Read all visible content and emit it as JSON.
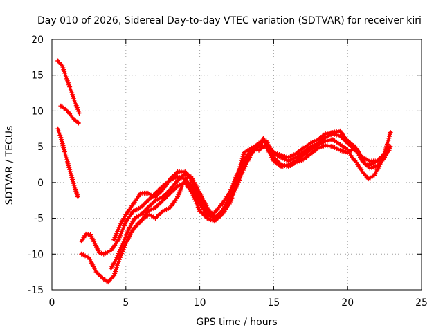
{
  "chart_data": {
    "type": "scatter",
    "title": "Day 010 of 2026, Sidereal Day-to-day VTEC variation (SDTVAR) for receiver kiri",
    "xlabel": "GPS time / hours",
    "ylabel": "SDTVAR / TECUs",
    "xlim": [
      0,
      25
    ],
    "ylim": [
      -15,
      20
    ],
    "x_ticks": [
      0,
      5,
      10,
      15,
      20,
      25
    ],
    "y_ticks": [
      -15,
      -10,
      -5,
      0,
      5,
      10,
      15,
      20
    ],
    "x_tick_labels": [
      "0",
      "5",
      "10",
      "15",
      "20",
      "25"
    ],
    "y_tick_labels": [
      "-15",
      "-10",
      "-5",
      "0",
      "5",
      "10",
      "15",
      "20"
    ],
    "grid": true,
    "legend": "none",
    "marker": "+",
    "color": "#ff0000",
    "series": [
      {
        "points": [
          [
            0.4,
            17.0
          ],
          [
            0.7,
            16.3
          ],
          [
            1.0,
            14.5
          ],
          [
            1.3,
            12.8
          ],
          [
            1.6,
            11.0
          ],
          [
            1.85,
            9.7
          ]
        ]
      },
      {
        "points": [
          [
            0.6,
            10.7
          ],
          [
            0.9,
            10.3
          ],
          [
            1.2,
            9.6
          ],
          [
            1.5,
            8.8
          ],
          [
            1.8,
            8.3
          ]
        ]
      },
      {
        "points": [
          [
            0.4,
            7.5
          ],
          [
            0.6,
            6.3
          ],
          [
            0.9,
            4.0
          ],
          [
            1.2,
            1.8
          ],
          [
            1.5,
            -0.4
          ],
          [
            1.75,
            -2.0
          ]
        ]
      },
      {
        "points": [
          [
            2.0,
            -8.2
          ],
          [
            2.3,
            -7.2
          ],
          [
            2.6,
            -7.3
          ],
          [
            2.9,
            -8.5
          ],
          [
            3.2,
            -9.8
          ],
          [
            3.5,
            -10.0
          ],
          [
            4.0,
            -9.5
          ],
          [
            4.5,
            -8.0
          ],
          [
            5.0,
            -5.5
          ],
          [
            5.5,
            -4.0
          ],
          [
            6.0,
            -3.5
          ],
          [
            6.5,
            -2.5
          ],
          [
            7.0,
            -1.5
          ],
          [
            7.5,
            -0.5
          ],
          [
            8.0,
            0.3
          ],
          [
            8.5,
            0.8
          ],
          [
            9.0,
            0.5
          ],
          [
            9.5,
            -0.8
          ],
          [
            10.0,
            -3.0
          ],
          [
            10.5,
            -4.5
          ],
          [
            11.0,
            -5.0
          ],
          [
            11.5,
            -4.0
          ],
          [
            12.0,
            -2.5
          ],
          [
            12.5,
            0.0
          ],
          [
            13.0,
            2.5
          ],
          [
            13.5,
            4.5
          ],
          [
            14.0,
            5.0
          ],
          [
            14.3,
            6.2
          ],
          [
            14.6,
            5.0
          ],
          [
            15.0,
            3.5
          ],
          [
            15.5,
            2.5
          ],
          [
            16.0,
            2.2
          ],
          [
            16.5,
            2.8
          ],
          [
            17.0,
            3.2
          ],
          [
            17.5,
            4.0
          ],
          [
            18.0,
            4.8
          ],
          [
            18.5,
            5.2
          ],
          [
            19.0,
            5.0
          ],
          [
            19.5,
            4.5
          ],
          [
            20.0,
            4.2
          ],
          [
            20.5,
            4.8
          ],
          [
            21.0,
            3.0
          ],
          [
            21.5,
            2.0
          ],
          [
            22.0,
            2.3
          ],
          [
            22.5,
            3.5
          ],
          [
            22.8,
            4.5
          ]
        ]
      },
      {
        "points": [
          [
            2.0,
            -10.0
          ],
          [
            2.5,
            -10.5
          ],
          [
            3.0,
            -12.5
          ],
          [
            3.5,
            -13.5
          ],
          [
            3.8,
            -13.9
          ],
          [
            4.2,
            -13.0
          ],
          [
            4.6,
            -10.5
          ],
          [
            5.0,
            -8.5
          ],
          [
            5.5,
            -6.5
          ],
          [
            6.0,
            -5.5
          ],
          [
            6.5,
            -4.0
          ],
          [
            7.0,
            -3.5
          ],
          [
            7.5,
            -2.5
          ],
          [
            8.0,
            -1.5
          ],
          [
            8.5,
            -0.5
          ],
          [
            9.0,
            0.0
          ],
          [
            9.5,
            -1.5
          ],
          [
            10.0,
            -4.0
          ],
          [
            10.5,
            -5.0
          ],
          [
            11.0,
            -5.4
          ],
          [
            11.5,
            -4.5
          ],
          [
            12.0,
            -3.0
          ],
          [
            12.5,
            -0.5
          ],
          [
            13.0,
            2.0
          ],
          [
            13.5,
            4.0
          ],
          [
            14.0,
            5.3
          ],
          [
            14.5,
            5.0
          ],
          [
            15.0,
            3.0
          ],
          [
            15.5,
            2.2
          ],
          [
            16.0,
            2.5
          ],
          [
            16.5,
            3.0
          ],
          [
            17.0,
            3.8
          ],
          [
            17.5,
            4.6
          ],
          [
            18.0,
            5.2
          ],
          [
            18.5,
            5.8
          ],
          [
            19.0,
            6.0
          ],
          [
            19.5,
            5.3
          ],
          [
            20.0,
            4.6
          ],
          [
            20.3,
            3.5
          ],
          [
            20.6,
            2.8
          ],
          [
            21.0,
            1.5
          ],
          [
            21.4,
            0.5
          ],
          [
            21.8,
            1.0
          ],
          [
            22.2,
            2.5
          ],
          [
            22.6,
            4.0
          ],
          [
            22.9,
            5.0
          ]
        ]
      },
      {
        "points": [
          [
            4.0,
            -12.0
          ],
          [
            4.4,
            -10.5
          ],
          [
            4.8,
            -8.5
          ],
          [
            5.2,
            -6.5
          ],
          [
            5.6,
            -5.0
          ],
          [
            6.0,
            -4.5
          ],
          [
            6.5,
            -3.5
          ],
          [
            7.0,
            -2.5
          ],
          [
            7.5,
            -2.0
          ],
          [
            8.0,
            -1.0
          ],
          [
            8.5,
            0.3
          ],
          [
            9.0,
            1.2
          ],
          [
            9.4,
            0.8
          ],
          [
            9.8,
            -1.5
          ],
          [
            10.2,
            -3.5
          ],
          [
            10.6,
            -4.5
          ],
          [
            11.0,
            -4.2
          ],
          [
            11.5,
            -3.0
          ],
          [
            12.0,
            -1.5
          ],
          [
            12.5,
            1.0
          ],
          [
            13.0,
            3.0
          ],
          [
            13.5,
            4.8
          ],
          [
            14.0,
            5.5
          ],
          [
            14.5,
            5.8
          ],
          [
            15.0,
            4.0
          ],
          [
            15.5,
            3.5
          ],
          [
            16.0,
            3.0
          ],
          [
            16.5,
            3.5
          ],
          [
            17.0,
            4.2
          ],
          [
            17.5,
            5.0
          ],
          [
            18.0,
            5.5
          ],
          [
            18.5,
            6.3
          ],
          [
            19.0,
            6.8
          ],
          [
            19.5,
            6.5
          ],
          [
            20.0,
            5.5
          ],
          [
            20.4,
            4.8
          ],
          [
            20.8,
            3.8
          ],
          [
            21.2,
            2.5
          ],
          [
            21.6,
            2.5
          ],
          [
            22.0,
            3.0
          ],
          [
            22.4,
            3.8
          ],
          [
            22.8,
            5.0
          ]
        ]
      },
      {
        "points": [
          [
            4.2,
            -8.0
          ],
          [
            4.6,
            -6.0
          ],
          [
            5.0,
            -4.5
          ],
          [
            5.5,
            -3.0
          ],
          [
            6.0,
            -1.5
          ],
          [
            6.5,
            -1.5
          ],
          [
            7.0,
            -2.0
          ],
          [
            7.5,
            -1.0
          ],
          [
            8.0,
            0.5
          ],
          [
            8.5,
            1.5
          ],
          [
            9.0,
            1.5
          ],
          [
            9.5,
            0.5
          ],
          [
            10.0,
            -1.5
          ],
          [
            10.5,
            -3.5
          ],
          [
            11.0,
            -5.0
          ],
          [
            11.5,
            -4.2
          ],
          [
            12.0,
            -2.0
          ],
          [
            12.5,
            0.5
          ],
          [
            13.0,
            4.2
          ],
          [
            13.5,
            4.8
          ],
          [
            14.0,
            4.5
          ],
          [
            14.5,
            5.3
          ],
          [
            15.0,
            4.2
          ],
          [
            15.5,
            3.8
          ],
          [
            16.0,
            3.5
          ],
          [
            16.5,
            4.0
          ],
          [
            17.0,
            4.8
          ],
          [
            17.5,
            5.5
          ],
          [
            18.0,
            6.0
          ],
          [
            18.5,
            6.8
          ],
          [
            19.0,
            7.0
          ],
          [
            19.5,
            7.2
          ],
          [
            20.0,
            5.8
          ],
          [
            20.5,
            5.0
          ],
          [
            21.0,
            3.5
          ],
          [
            21.5,
            3.0
          ],
          [
            22.0,
            3.0
          ],
          [
            22.5,
            4.0
          ],
          [
            22.9,
            7.0
          ]
        ]
      },
      {
        "points": [
          [
            5.8,
            -5.8
          ],
          [
            6.2,
            -5.0
          ],
          [
            6.6,
            -4.5
          ],
          [
            7.0,
            -5.0
          ],
          [
            7.5,
            -4.0
          ],
          [
            8.0,
            -3.5
          ],
          [
            8.5,
            -2.0
          ],
          [
            9.0,
            0.5
          ],
          [
            9.3,
            0.8
          ],
          [
            9.6,
            -0.5
          ],
          [
            10.0,
            -2.0
          ],
          [
            10.5,
            -3.8
          ],
          [
            11.0,
            -4.8
          ]
        ]
      }
    ]
  }
}
